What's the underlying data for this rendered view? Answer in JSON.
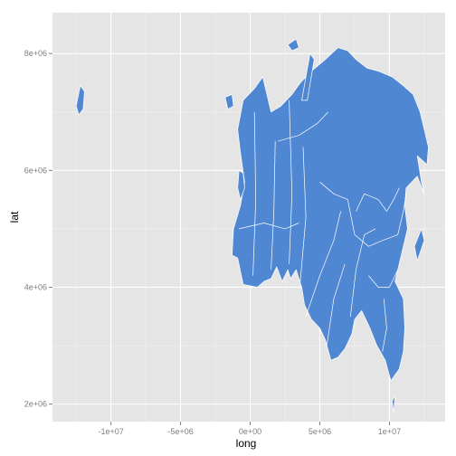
{
  "chart_data": {
    "type": "map",
    "title": "",
    "xlabel": "long",
    "ylabel": "lat",
    "xlim": [
      -14200000,
      14000000
    ],
    "ylim": [
      1700000,
      8700000
    ],
    "x_ticks": [
      {
        "value": -10000000,
        "label": "-1e+07"
      },
      {
        "value": -5000000,
        "label": "-5e+06"
      },
      {
        "value": 0,
        "label": "0e+00"
      },
      {
        "value": 5000000,
        "label": "5e+06"
      },
      {
        "value": 10000000,
        "label": "1e+07"
      }
    ],
    "y_ticks": [
      {
        "value": 2000000,
        "label": "2e+06"
      },
      {
        "value": 4000000,
        "label": "4e+06"
      },
      {
        "value": 6000000,
        "label": "6e+06"
      },
      {
        "value": 8000000,
        "label": "8e+06"
      }
    ],
    "grid": true,
    "fill_color": "#4F87D2",
    "border_color": "#ffffff",
    "panel_color": "#E5E5E5",
    "shapes": [
      {
        "name": "mainland",
        "points": [
          [
            -500000,
            7200000
          ],
          [
            300000,
            7400000
          ],
          [
            900000,
            7600000
          ],
          [
            1500000,
            7000000
          ],
          [
            2200000,
            7100000
          ],
          [
            3000000,
            7300000
          ],
          [
            3600000,
            7500000
          ],
          [
            4400000,
            7700000
          ],
          [
            5400000,
            7900000
          ],
          [
            6300000,
            8100000
          ],
          [
            7000000,
            8050000
          ],
          [
            7600000,
            7900000
          ],
          [
            8400000,
            7750000
          ],
          [
            9200000,
            7700000
          ],
          [
            10200000,
            7600000
          ],
          [
            11000000,
            7450000
          ],
          [
            11700000,
            7300000
          ],
          [
            12200000,
            7000000
          ],
          [
            12500000,
            6700000
          ],
          [
            12800000,
            6400000
          ],
          [
            12700000,
            6100000
          ],
          [
            12000000,
            6250000
          ],
          [
            12300000,
            5800000
          ],
          [
            12500000,
            5600000
          ],
          [
            12000000,
            5900000
          ],
          [
            11200000,
            5700000
          ],
          [
            11100000,
            5400000
          ],
          [
            11300000,
            5000000
          ],
          [
            11000000,
            4700000
          ],
          [
            10700000,
            4400000
          ],
          [
            10400000,
            4100000
          ],
          [
            11000000,
            3800000
          ],
          [
            11100000,
            3300000
          ],
          [
            11000000,
            2900000
          ],
          [
            10700000,
            2600000
          ],
          [
            10100000,
            2400000
          ],
          [
            9700000,
            2750000
          ],
          [
            9100000,
            3000000
          ],
          [
            8600000,
            3300000
          ],
          [
            8000000,
            3600000
          ],
          [
            7500000,
            3450000
          ],
          [
            7300000,
            3200000
          ],
          [
            6800000,
            2950000
          ],
          [
            6300000,
            2800000
          ],
          [
            5800000,
            2750000
          ],
          [
            5400000,
            3100000
          ],
          [
            5000000,
            3300000
          ],
          [
            4400000,
            3450000
          ],
          [
            3900000,
            3700000
          ],
          [
            3700000,
            4000000
          ],
          [
            3300000,
            4300000
          ],
          [
            2900000,
            4150000
          ],
          [
            2700000,
            4300000
          ],
          [
            2300000,
            4100000
          ],
          [
            1900000,
            4350000
          ],
          [
            1500000,
            4150000
          ],
          [
            1000000,
            4100000
          ],
          [
            500000,
            4000000
          ],
          [
            -500000,
            4050000
          ],
          [
            -900000,
            4500000
          ],
          [
            -1300000,
            4550000
          ],
          [
            -1200000,
            5000000
          ],
          [
            -700000,
            5400000
          ],
          [
            -400000,
            5800000
          ],
          [
            -700000,
            6300000
          ],
          [
            -900000,
            6700000
          ]
        ]
      },
      {
        "name": "greenland",
        "points": [
          [
            -12500000,
            7100000
          ],
          [
            -12200000,
            7450000
          ],
          [
            -11900000,
            7350000
          ],
          [
            -12000000,
            7050000
          ],
          [
            -12300000,
            6950000
          ]
        ]
      },
      {
        "name": "iceland",
        "points": [
          [
            -1800000,
            7250000
          ],
          [
            -1300000,
            7300000
          ],
          [
            -1200000,
            7100000
          ],
          [
            -1600000,
            7050000
          ]
        ]
      },
      {
        "name": "uk",
        "points": [
          [
            -800000,
            6000000
          ],
          [
            -500000,
            5950000
          ],
          [
            -400000,
            5700000
          ],
          [
            -700000,
            5500000
          ],
          [
            -900000,
            5700000
          ]
        ]
      },
      {
        "name": "novaya-zemlya",
        "points": [
          [
            3700000,
            7200000
          ],
          [
            4300000,
            8000000
          ],
          [
            4600000,
            7900000
          ],
          [
            4100000,
            7200000
          ]
        ]
      },
      {
        "name": "japan",
        "points": [
          [
            11800000,
            4700000
          ],
          [
            12300000,
            5000000
          ],
          [
            12500000,
            4800000
          ],
          [
            12000000,
            4450000
          ]
        ]
      },
      {
        "name": "svalbard",
        "points": [
          [
            2700000,
            8150000
          ],
          [
            3300000,
            8250000
          ],
          [
            3500000,
            8100000
          ],
          [
            3000000,
            8050000
          ]
        ]
      },
      {
        "name": "sri-lanka",
        "points": [
          [
            10200000,
            2050000
          ],
          [
            10400000,
            2150000
          ],
          [
            10300000,
            1850000
          ]
        ]
      }
    ],
    "borders": [
      [
        [
          200000,
          4200000
        ],
        [
          400000,
          5500000
        ],
        [
          300000,
          7000000
        ]
      ],
      [
        [
          1500000,
          4300000
        ],
        [
          1700000,
          5300000
        ],
        [
          1800000,
          6500000
        ]
      ],
      [
        [
          2800000,
          4400000
        ],
        [
          3000000,
          5600000
        ],
        [
          2800000,
          7200000
        ]
      ],
      [
        [
          3600000,
          4100000
        ],
        [
          4000000,
          5200000
        ],
        [
          3800000,
          6400000
        ]
      ],
      [
        [
          -800000,
          5000000
        ],
        [
          1000000,
          5100000
        ],
        [
          2500000,
          5000000
        ],
        [
          3500000,
          5100000
        ]
      ],
      [
        [
          4000000,
          3500000
        ],
        [
          5000000,
          4200000
        ],
        [
          6000000,
          4800000
        ],
        [
          6500000,
          5300000
        ]
      ],
      [
        [
          5500000,
          3000000
        ],
        [
          6000000,
          3800000
        ],
        [
          6800000,
          4400000
        ]
      ],
      [
        [
          7200000,
          3500000
        ],
        [
          7600000,
          4300000
        ],
        [
          8200000,
          4900000
        ],
        [
          9000000,
          5000000
        ]
      ],
      [
        [
          5000000,
          5800000
        ],
        [
          6000000,
          5600000
        ],
        [
          7000000,
          5500000
        ]
      ],
      [
        [
          7000000,
          5500000
        ],
        [
          7500000,
          4900000
        ],
        [
          8500000,
          4700000
        ],
        [
          9500000,
          4800000
        ],
        [
          10600000,
          4900000
        ],
        [
          11000000,
          5300000
        ],
        [
          11200000,
          5600000
        ]
      ],
      [
        [
          7600000,
          5300000
        ],
        [
          8200000,
          5600000
        ],
        [
          9200000,
          5500000
        ],
        [
          9800000,
          5300000
        ],
        [
          10300000,
          5500000
        ],
        [
          10700000,
          5700000
        ]
      ],
      [
        [
          8500000,
          4200000
        ],
        [
          9200000,
          4000000
        ],
        [
          10000000,
          4000000
        ],
        [
          10600000,
          4300000
        ]
      ],
      [
        [
          9600000,
          3800000
        ],
        [
          9800000,
          3300000
        ],
        [
          9500000,
          2900000
        ]
      ],
      [
        [
          2000000,
          6500000
        ],
        [
          3500000,
          6600000
        ],
        [
          4800000,
          6800000
        ],
        [
          5600000,
          7000000
        ]
      ]
    ]
  }
}
